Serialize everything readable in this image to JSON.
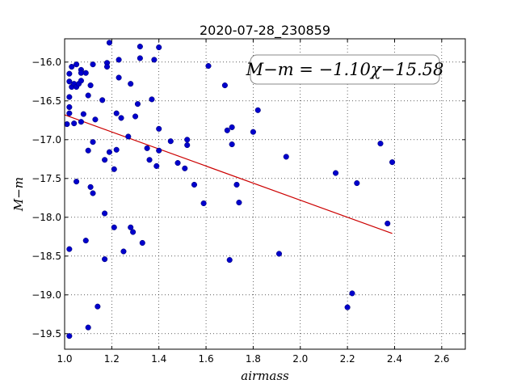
{
  "chart_data": {
    "type": "scatter",
    "title": "2020-07-28_230859",
    "xlabel": "airmass",
    "ylabel": "M−m",
    "xlim": [
      1.0,
      2.7
    ],
    "ylim": [
      -19.7,
      -15.7
    ],
    "y_inverted": true,
    "grid": true,
    "x_ticks": [
      1.0,
      1.2,
      1.4,
      1.6,
      1.8,
      2.0,
      2.2,
      2.4,
      2.6
    ],
    "x_tick_labels": [
      "1.0",
      "1.2",
      "1.4",
      "1.6",
      "1.8",
      "2.0",
      "2.2",
      "2.4",
      "2.6"
    ],
    "y_ticks": [
      -16.0,
      -16.5,
      -17.0,
      -17.5,
      -18.0,
      -18.5,
      -19.0,
      -19.5
    ],
    "y_tick_labels": [
      "−16.0",
      "−16.5",
      "−17.0",
      "−17.5",
      "−18.0",
      "−18.5",
      "−19.0",
      "−19.5"
    ],
    "fit": {
      "label": "M−m = −1.10χ−15.58",
      "slope": -1.1,
      "intercept": -15.58,
      "x_range": [
        1.0,
        2.39
      ],
      "color": "#cc0000",
      "legend_position": "top-right"
    },
    "marker_color": "#0000cc",
    "points": [
      [
        1.01,
        -16.8
      ],
      [
        1.02,
        -16.15
      ],
      [
        1.02,
        -16.25
      ],
      [
        1.02,
        -16.45
      ],
      [
        1.02,
        -16.58
      ],
      [
        1.02,
        -16.66
      ],
      [
        1.02,
        -18.41
      ],
      [
        1.02,
        -19.53
      ],
      [
        1.03,
        -16.06
      ],
      [
        1.03,
        -16.32
      ],
      [
        1.04,
        -16.79
      ],
      [
        1.04,
        -16.28
      ],
      [
        1.05,
        -16.03
      ],
      [
        1.05,
        -16.32
      ],
      [
        1.05,
        -17.54
      ],
      [
        1.06,
        -16.28
      ],
      [
        1.07,
        -16.24
      ],
      [
        1.07,
        -16.1
      ],
      [
        1.07,
        -16.14
      ],
      [
        1.07,
        -16.77
      ],
      [
        1.08,
        -16.67
      ],
      [
        1.09,
        -18.3
      ],
      [
        1.09,
        -16.14
      ],
      [
        1.1,
        -16.43
      ],
      [
        1.1,
        -17.14
      ],
      [
        1.1,
        -19.42
      ],
      [
        1.11,
        -16.3
      ],
      [
        1.11,
        -17.61
      ],
      [
        1.12,
        -17.69
      ],
      [
        1.12,
        -16.03
      ],
      [
        1.12,
        -17.03
      ],
      [
        1.13,
        -16.74
      ],
      [
        1.14,
        -19.15
      ],
      [
        1.16,
        -16.49
      ],
      [
        1.17,
        -17.26
      ],
      [
        1.17,
        -17.95
      ],
      [
        1.17,
        -18.54
      ],
      [
        1.18,
        -16.01
      ],
      [
        1.18,
        -16.06
      ],
      [
        1.19,
        -17.16
      ],
      [
        1.19,
        -15.75
      ],
      [
        1.21,
        -17.38
      ],
      [
        1.21,
        -18.13
      ],
      [
        1.22,
        -16.66
      ],
      [
        1.22,
        -17.13
      ],
      [
        1.23,
        -16.2
      ],
      [
        1.23,
        -15.97
      ],
      [
        1.24,
        -16.72
      ],
      [
        1.25,
        -18.44
      ],
      [
        1.27,
        -16.96
      ],
      [
        1.28,
        -16.28
      ],
      [
        1.28,
        -18.13
      ],
      [
        1.29,
        -18.19
      ],
      [
        1.3,
        -16.7
      ],
      [
        1.31,
        -16.54
      ],
      [
        1.32,
        -15.95
      ],
      [
        1.32,
        -15.8
      ],
      [
        1.33,
        -18.33
      ],
      [
        1.35,
        -17.11
      ],
      [
        1.36,
        -17.26
      ],
      [
        1.37,
        -16.48
      ],
      [
        1.38,
        -15.97
      ],
      [
        1.39,
        -17.34
      ],
      [
        1.4,
        -17.14
      ],
      [
        1.4,
        -15.81
      ],
      [
        1.4,
        -16.86
      ],
      [
        1.45,
        -17.02
      ],
      [
        1.48,
        -17.3
      ],
      [
        1.51,
        -17.37
      ],
      [
        1.52,
        -17.07
      ],
      [
        1.52,
        -17.0
      ],
      [
        1.55,
        -17.58
      ],
      [
        1.59,
        -17.82
      ],
      [
        1.61,
        -16.05
      ],
      [
        1.68,
        -16.3
      ],
      [
        1.69,
        -16.88
      ],
      [
        1.7,
        -18.55
      ],
      [
        1.71,
        -16.84
      ],
      [
        1.71,
        -17.06
      ],
      [
        1.73,
        -17.58
      ],
      [
        1.74,
        -17.81
      ],
      [
        1.8,
        -16.9
      ],
      [
        1.82,
        -16.62
      ],
      [
        1.91,
        -18.47
      ],
      [
        1.94,
        -17.22
      ],
      [
        2.15,
        -17.43
      ],
      [
        2.2,
        -19.16
      ],
      [
        2.22,
        -18.98
      ],
      [
        2.24,
        -17.56
      ],
      [
        2.34,
        -17.05
      ],
      [
        2.37,
        -18.08
      ],
      [
        2.39,
        -17.29
      ]
    ]
  }
}
